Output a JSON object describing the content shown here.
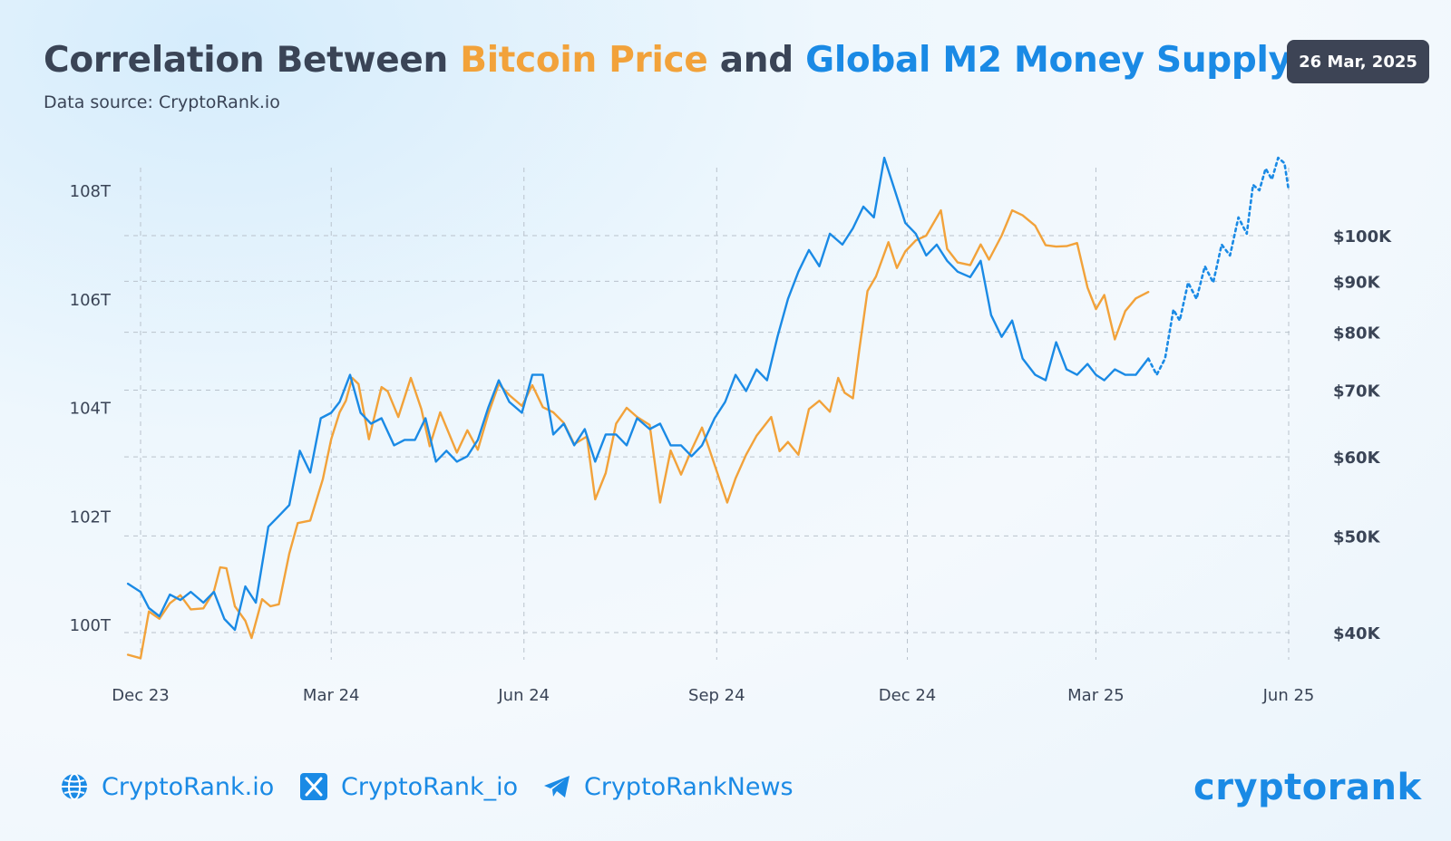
{
  "header": {
    "title_prefix": "Correlation Between ",
    "title_btc": "Bitcoin Price",
    "title_mid": " and ",
    "title_m2": "Global M2 Money Supply",
    "subtitle": "Data source: CryptoRank.io",
    "date": "26 Mar, 2025"
  },
  "footer": {
    "website": "CryptoRank.io",
    "x_handle": "CryptoRank_io",
    "telegram": "CryptoRankNews",
    "logo": "cryptorank"
  },
  "colors": {
    "bitcoin": "#f2a23a",
    "m2": "#1a8ae5",
    "text": "#3a4456",
    "grid": "#b9c2cc"
  },
  "icons": [
    "globe-icon",
    "x-logo-icon",
    "telegram-icon"
  ],
  "chart_data": {
    "type": "line",
    "x_axis": {
      "ticks": [
        "Dec 23",
        "Mar 24",
        "Jun 24",
        "Sep 24",
        "Dec 24",
        "Mar 25",
        "Jun 25"
      ],
      "tick_dates": [
        "2023-12-01",
        "2024-03-01",
        "2024-06-01",
        "2024-09-01",
        "2024-12-01",
        "2025-03-01",
        "2025-06-01"
      ],
      "range": [
        "2023-11-25",
        "2025-06-01"
      ]
    },
    "y_left": {
      "ticks": [
        "100T",
        "102T",
        "104T",
        "106T",
        "108T"
      ],
      "tick_values": [
        100,
        102,
        104,
        106,
        108
      ],
      "unit": "T USD",
      "range": [
        99.3,
        108.3
      ]
    },
    "y_right": {
      "ticks": [
        "$40K",
        "$50K",
        "$60K",
        "$70K",
        "$80K",
        "$90K",
        "$100K"
      ],
      "tick_values": [
        40000,
        50000,
        60000,
        70000,
        80000,
        90000,
        100000
      ],
      "scale": "log",
      "range": [
        38000,
        125000
      ]
    },
    "grid": true,
    "series": [
      {
        "name": "Bitcoin Price",
        "axis": "right",
        "style": "solid",
        "x": [
          "2023-11-25",
          "2023-12-01",
          "2023-12-05",
          "2023-12-10",
          "2023-12-15",
          "2023-12-20",
          "2023-12-25",
          "2023-12-31",
          "2024-01-05",
          "2024-01-08",
          "2024-01-11",
          "2024-01-15",
          "2024-01-20",
          "2024-01-23",
          "2024-01-28",
          "2024-02-01",
          "2024-02-05",
          "2024-02-10",
          "2024-02-14",
          "2024-02-20",
          "2024-02-26",
          "2024-03-01",
          "2024-03-05",
          "2024-03-08",
          "2024-03-11",
          "2024-03-14",
          "2024-03-19",
          "2024-03-25",
          "2024-03-28",
          "2024-04-02",
          "2024-04-08",
          "2024-04-13",
          "2024-04-17",
          "2024-04-22",
          "2024-04-30",
          "2024-05-05",
          "2024-05-10",
          "2024-05-15",
          "2024-05-20",
          "2024-05-25",
          "2024-05-31",
          "2024-06-05",
          "2024-06-10",
          "2024-06-15",
          "2024-06-20",
          "2024-06-25",
          "2024-07-01",
          "2024-07-05",
          "2024-07-10",
          "2024-07-15",
          "2024-07-20",
          "2024-07-25",
          "2024-07-31",
          "2024-08-05",
          "2024-08-10",
          "2024-08-15",
          "2024-08-20",
          "2024-08-25",
          "2024-08-31",
          "2024-09-06",
          "2024-09-10",
          "2024-09-15",
          "2024-09-20",
          "2024-09-27",
          "2024-10-01",
          "2024-10-05",
          "2024-10-10",
          "2024-10-15",
          "2024-10-20",
          "2024-10-25",
          "2024-10-29",
          "2024-11-01",
          "2024-11-05",
          "2024-11-08",
          "2024-11-12",
          "2024-11-16",
          "2024-11-22",
          "2024-11-26",
          "2024-11-30",
          "2024-12-05",
          "2024-12-10",
          "2024-12-17",
          "2024-12-20",
          "2024-12-25",
          "2024-12-31",
          "2025-01-05",
          "2025-01-09",
          "2025-01-15",
          "2025-01-20",
          "2025-01-25",
          "2025-01-31",
          "2025-02-05",
          "2025-02-10",
          "2025-02-15",
          "2025-02-20",
          "2025-02-25",
          "2025-03-01",
          "2025-03-05",
          "2025-03-10",
          "2025-03-15",
          "2025-03-20",
          "2025-03-26"
        ],
        "values": [
          38000,
          37700,
          42000,
          41300,
          42800,
          43600,
          42200,
          42300,
          44000,
          46500,
          46400,
          42500,
          41100,
          39500,
          43200,
          42500,
          42700,
          48000,
          51500,
          51800,
          57000,
          62500,
          66500,
          68300,
          72000,
          71000,
          62500,
          70500,
          69800,
          65800,
          72000,
          67000,
          61500,
          66500,
          60600,
          63800,
          61000,
          66300,
          71000,
          69200,
          67500,
          70800,
          67300,
          66500,
          64900,
          61800,
          62900,
          54400,
          57800,
          64800,
          67200,
          65800,
          64600,
          54000,
          60900,
          57600,
          61000,
          64200,
          58900,
          54000,
          57100,
          60300,
          63000,
          65800,
          60800,
          62100,
          60300,
          67000,
          68300,
          66600,
          72000,
          69600,
          68700,
          76700,
          88000,
          91000,
          98500,
          92800,
          96400,
          98900,
          100000,
          106000,
          97000,
          94000,
          93400,
          98000,
          94600,
          100000,
          106000,
          104800,
          102300,
          97800,
          97500,
          97600,
          98300,
          88700,
          84400,
          87200,
          78700,
          84000,
          86500,
          87800
        ]
      },
      {
        "name": "Global M2 Money Supply",
        "axis": "left",
        "style": "solid",
        "x": [
          "2023-11-25",
          "2023-12-01",
          "2023-12-05",
          "2023-12-10",
          "2023-12-15",
          "2023-12-20",
          "2023-12-25",
          "2023-12-31",
          "2024-01-05",
          "2024-01-10",
          "2024-01-15",
          "2024-01-20",
          "2024-01-25",
          "2024-01-31",
          "2024-02-05",
          "2024-02-10",
          "2024-02-15",
          "2024-02-20",
          "2024-02-25",
          "2024-03-01",
          "2024-03-05",
          "2024-03-10",
          "2024-03-15",
          "2024-03-20",
          "2024-03-25",
          "2024-03-31",
          "2024-04-05",
          "2024-04-10",
          "2024-04-15",
          "2024-04-20",
          "2024-04-25",
          "2024-04-30",
          "2024-05-05",
          "2024-05-10",
          "2024-05-15",
          "2024-05-20",
          "2024-05-25",
          "2024-05-31",
          "2024-06-05",
          "2024-06-10",
          "2024-06-15",
          "2024-06-20",
          "2024-06-25",
          "2024-06-30",
          "2024-07-05",
          "2024-07-10",
          "2024-07-15",
          "2024-07-20",
          "2024-07-25",
          "2024-07-31",
          "2024-08-05",
          "2024-08-10",
          "2024-08-15",
          "2024-08-20",
          "2024-08-25",
          "2024-08-31",
          "2024-09-05",
          "2024-09-10",
          "2024-09-15",
          "2024-09-20",
          "2024-09-25",
          "2024-09-30",
          "2024-10-05",
          "2024-10-10",
          "2024-10-15",
          "2024-10-20",
          "2024-10-25",
          "2024-10-31",
          "2024-11-05",
          "2024-11-10",
          "2024-11-15",
          "2024-11-20",
          "2024-11-25",
          "2024-11-30",
          "2024-12-05",
          "2024-12-10",
          "2024-12-15",
          "2024-12-20",
          "2024-12-25",
          "2024-12-31",
          "2025-01-05",
          "2025-01-10",
          "2025-01-15",
          "2025-01-20",
          "2025-01-25",
          "2025-01-31",
          "2025-02-05",
          "2025-02-10",
          "2025-02-15",
          "2025-02-20",
          "2025-02-25",
          "2025-03-01",
          "2025-03-05",
          "2025-03-10",
          "2025-03-15",
          "2025-03-20",
          "2025-03-26"
        ],
        "values": [
          100.75,
          100.6,
          100.3,
          100.15,
          100.55,
          100.45,
          100.6,
          100.4,
          100.6,
          100.1,
          99.9,
          100.7,
          100.4,
          101.8,
          102.0,
          102.2,
          103.2,
          102.8,
          103.8,
          103.9,
          104.1,
          104.6,
          103.9,
          103.7,
          103.8,
          103.3,
          103.4,
          103.4,
          103.8,
          103.0,
          103.2,
          103.0,
          103.1,
          103.4,
          104.0,
          104.5,
          104.1,
          103.9,
          104.6,
          104.6,
          103.5,
          103.7,
          103.3,
          103.6,
          103.0,
          103.5,
          103.5,
          103.3,
          103.8,
          103.6,
          103.7,
          103.3,
          103.3,
          103.1,
          103.3,
          103.8,
          104.1,
          104.6,
          104.3,
          104.7,
          104.5,
          105.3,
          106.0,
          106.5,
          106.9,
          106.6,
          107.2,
          107.0,
          107.3,
          107.7,
          107.5,
          108.6,
          108.0,
          107.4,
          107.2,
          106.8,
          107.0,
          106.7,
          106.5,
          106.4,
          106.7,
          105.7,
          105.3,
          105.6,
          104.9,
          104.6,
          104.5,
          105.2,
          104.7,
          104.6,
          104.8,
          104.6,
          104.5,
          104.7,
          104.6,
          104.6,
          104.9
        ]
      },
      {
        "name": "Global M2 Money Supply (projection)",
        "axis": "left",
        "style": "dotted",
        "x": [
          "2025-03-26",
          "2025-03-30",
          "2025-04-03",
          "2025-04-07",
          "2025-04-10",
          "2025-04-14",
          "2025-04-18",
          "2025-04-22",
          "2025-04-26",
          "2025-04-30",
          "2025-05-04",
          "2025-05-08",
          "2025-05-12",
          "2025-05-15",
          "2025-05-18",
          "2025-05-21",
          "2025-05-24",
          "2025-05-27",
          "2025-05-30",
          "2025-06-01"
        ],
        "values": [
          104.9,
          104.6,
          104.9,
          105.8,
          105.6,
          106.3,
          106.0,
          106.6,
          106.3,
          107.0,
          106.8,
          107.5,
          107.2,
          108.1,
          108.0,
          108.4,
          108.2,
          108.6,
          108.5,
          108.0
        ]
      }
    ]
  }
}
